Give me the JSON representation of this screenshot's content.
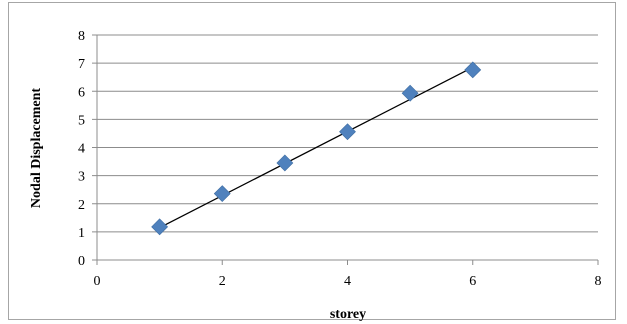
{
  "chart_data": {
    "type": "scatter",
    "xlabel": "storey",
    "ylabel": "Nodal Displacement",
    "xlim": [
      0,
      8
    ],
    "ylim": [
      0,
      8
    ],
    "x_ticks": [
      "0",
      "2",
      "4",
      "6",
      "8"
    ],
    "y_ticks": [
      "0",
      "1",
      "2",
      "3",
      "4",
      "5",
      "6",
      "7",
      "8"
    ],
    "grid": "horizontal",
    "legend": "none",
    "series": [
      {
        "x": [
          1,
          2,
          3,
          4,
          5,
          6
        ],
        "y": [
          1.18,
          2.36,
          3.45,
          4.56,
          5.93,
          6.76
        ],
        "marker": "diamond",
        "color": "#4f81bd"
      }
    ],
    "trendline": {
      "type": "linear",
      "x": [
        1,
        6
      ],
      "y": [
        1.15,
        6.85
      ],
      "color": "#000000"
    }
  }
}
